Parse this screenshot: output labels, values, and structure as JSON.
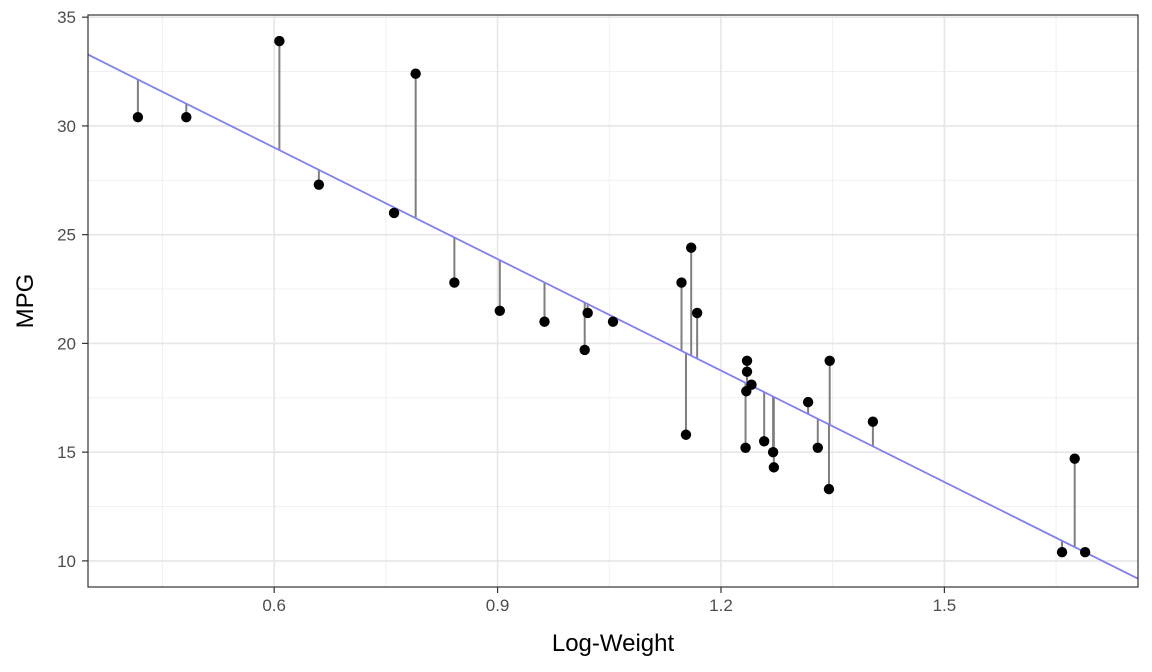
{
  "chart_data": {
    "type": "scatter",
    "title": "",
    "xlabel": "Log-Weight",
    "ylabel": "MPG",
    "xlim": [
      0.35,
      1.76
    ],
    "ylim": [
      8.8,
      35.1
    ],
    "x_ticks": [
      0.6,
      0.9,
      1.2,
      1.5
    ],
    "x_tick_labels": [
      "0.6",
      "0.9",
      "1.2",
      "1.5"
    ],
    "x_minor_ticks": [
      0.45,
      0.75,
      1.05,
      1.35,
      1.65
    ],
    "y_ticks": [
      10,
      15,
      20,
      25,
      30,
      35
    ],
    "y_tick_labels": [
      "10",
      "15",
      "20",
      "25",
      "30",
      "35"
    ],
    "y_minor_ticks": [
      12.5,
      17.5,
      22.5,
      27.5,
      32.5
    ],
    "grid": true,
    "legend": "none",
    "regression_line": {
      "intercept": 39.26,
      "slope": -17.09,
      "color": "#8080f0"
    },
    "point_color": "#000000",
    "residual_color": "#7f7f7f",
    "points": [
      {
        "x": 0.417,
        "y": 30.4
      },
      {
        "x": 0.482,
        "y": 30.4
      },
      {
        "x": 0.607,
        "y": 33.9
      },
      {
        "x": 0.66,
        "y": 27.3
      },
      {
        "x": 0.761,
        "y": 26.0
      },
      {
        "x": 0.79,
        "y": 32.4
      },
      {
        "x": 0.842,
        "y": 22.8
      },
      {
        "x": 0.903,
        "y": 21.5
      },
      {
        "x": 0.963,
        "y": 21.0
      },
      {
        "x": 1.017,
        "y": 19.7
      },
      {
        "x": 1.021,
        "y": 21.4
      },
      {
        "x": 1.055,
        "y": 21.0
      },
      {
        "x": 1.147,
        "y": 22.8
      },
      {
        "x": 1.153,
        "y": 15.8
      },
      {
        "x": 1.16,
        "y": 24.4
      },
      {
        "x": 1.168,
        "y": 21.4
      },
      {
        "x": 1.233,
        "y": 15.2
      },
      {
        "x": 1.234,
        "y": 17.8
      },
      {
        "x": 1.235,
        "y": 19.2
      },
      {
        "x": 1.235,
        "y": 18.7
      },
      {
        "x": 1.241,
        "y": 18.1
      },
      {
        "x": 1.258,
        "y": 15.5
      },
      {
        "x": 1.27,
        "y": 15.0
      },
      {
        "x": 1.271,
        "y": 14.3
      },
      {
        "x": 1.317,
        "y": 17.3
      },
      {
        "x": 1.33,
        "y": 15.2
      },
      {
        "x": 1.345,
        "y": 13.3
      },
      {
        "x": 1.346,
        "y": 19.2
      },
      {
        "x": 1.404,
        "y": 16.4
      },
      {
        "x": 1.658,
        "y": 10.4
      },
      {
        "x": 1.675,
        "y": 14.7
      },
      {
        "x": 1.689,
        "y": 10.4
      }
    ]
  }
}
